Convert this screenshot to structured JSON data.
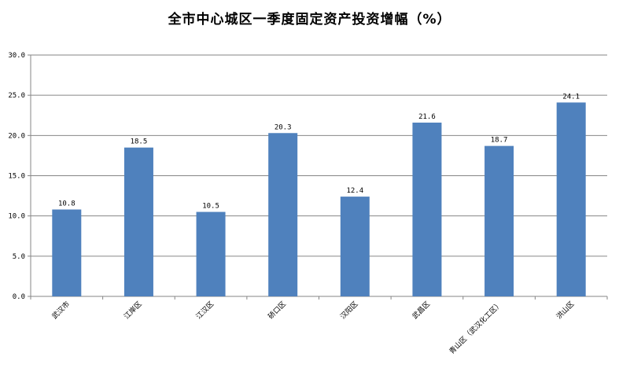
{
  "chart_data": {
    "type": "bar",
    "title": "全市中心城区一季度固定资产投资增幅（%）",
    "categories": [
      "武汉市",
      "江岸区",
      "江汉区",
      "硚口区",
      "汉阳区",
      "武昌区",
      "青山区（武汉化工区）",
      "洪山区"
    ],
    "values": [
      10.8,
      18.5,
      10.5,
      20.3,
      12.4,
      21.6,
      18.7,
      24.1
    ],
    "value_labels": [
      "10.8",
      "18.5",
      "10.5",
      "20.3",
      "12.4",
      "21.6",
      "18.7",
      "24.1"
    ],
    "ylim": [
      0,
      30
    ],
    "yticks": [
      "0.0",
      "5.0",
      "10.0",
      "15.0",
      "20.0",
      "25.0",
      "30.0"
    ],
    "ytick_values": [
      0,
      5,
      10,
      15,
      20,
      25,
      30
    ],
    "grid": true,
    "legend": "none",
    "xlabel": "",
    "ylabel": "",
    "colors": {
      "bar": "#4F81BD",
      "grid": "#868686",
      "axis": "#868686"
    }
  }
}
